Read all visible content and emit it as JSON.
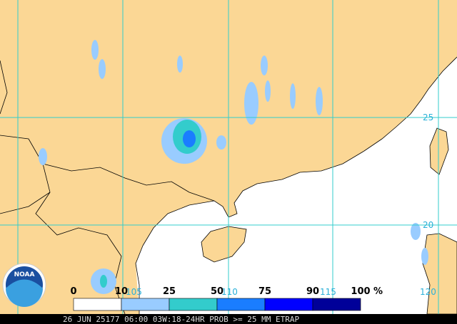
{
  "map": {
    "legend": {
      "labels": [
        "0",
        "10",
        "25",
        "50",
        "75",
        "90",
        "100",
        "%"
      ],
      "colors": [
        "#ffffff",
        "#99ccff",
        "#33cccc",
        "#1a7dff",
        "#0000ff",
        "#000099"
      ]
    },
    "grid_labels": {
      "longitude": [
        "105",
        "110",
        "115",
        "120"
      ],
      "latitude": [
        "25",
        "20"
      ]
    },
    "logo": "NOAA",
    "footer": "26 JUN 25177 06:00 03W:18-24HR PROB >= 25 MM ETRAP"
  }
}
